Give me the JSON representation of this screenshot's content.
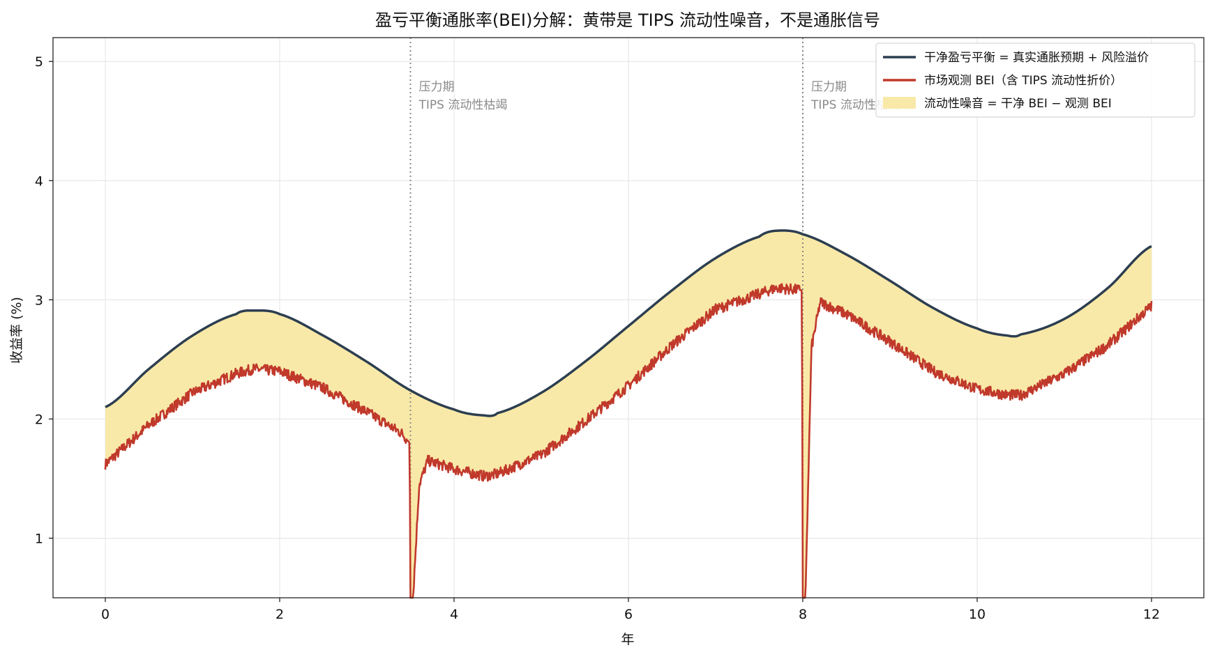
{
  "chart_data": {
    "type": "line",
    "title": "盈亏平衡通胀率(BEI)分解：黄带是 TIPS 流动性噪音，不是通胀信号",
    "xlabel": "年",
    "ylabel": "收益率 (%)",
    "xlim": [
      -0.6,
      12.6
    ],
    "ylim": [
      0.5,
      5.2
    ],
    "xticks": [
      0,
      2,
      4,
      6,
      8,
      10,
      12
    ],
    "yticks": [
      1,
      2,
      3,
      4,
      5
    ],
    "grid": true,
    "legend_position": "top-right",
    "stress_events": [
      3.5,
      8.0
    ],
    "annotations": [
      {
        "x": 3.5,
        "lines": [
          "压力期",
          "TIPS 流动性枯竭"
        ]
      },
      {
        "x": 8.0,
        "lines": [
          "压力期",
          "TIPS 流动性枯竭"
        ]
      }
    ],
    "series": [
      {
        "name": "干净盈亏平衡 = 真实通胀预期 + 风险溢价",
        "color": "#2c3e50",
        "x": [
          0,
          0.5,
          1,
          1.5,
          1.7,
          2,
          2.5,
          3,
          3.5,
          4,
          4.35,
          4.5,
          5,
          5.5,
          6,
          6.5,
          7,
          7.5,
          7.7,
          8,
          8.5,
          9,
          9.5,
          10,
          10.35,
          10.5,
          11,
          11.5,
          12
        ],
        "values": [
          2.1,
          2.42,
          2.7,
          2.88,
          2.91,
          2.88,
          2.7,
          2.48,
          2.24,
          2.08,
          2.03,
          2.05,
          2.22,
          2.48,
          2.78,
          3.08,
          3.35,
          3.53,
          3.58,
          3.55,
          3.38,
          3.16,
          2.93,
          2.76,
          2.7,
          2.71,
          2.84,
          3.1,
          3.45
        ]
      },
      {
        "name": "市场观测 BEI（含 TIPS 流动性折价）",
        "color": "#c0392b",
        "x": [
          0,
          0.5,
          1,
          1.5,
          1.7,
          2,
          2.5,
          3,
          3.4,
          3.49,
          3.5,
          3.53,
          3.6,
          3.7,
          4,
          4.35,
          4.5,
          5,
          5.5,
          6,
          6.5,
          7,
          7.5,
          7.7,
          7.99,
          8.0,
          8.03,
          8.1,
          8.2,
          8.5,
          9,
          9.5,
          10,
          10.35,
          10.5,
          11,
          11.5,
          12
        ],
        "values": [
          1.62,
          1.95,
          2.22,
          2.38,
          2.42,
          2.4,
          2.26,
          2.06,
          1.88,
          1.8,
          0.5,
          0.5,
          1.45,
          1.65,
          1.58,
          1.52,
          1.54,
          1.7,
          1.98,
          2.28,
          2.62,
          2.92,
          3.05,
          3.1,
          3.08,
          0.5,
          0.5,
          2.6,
          2.98,
          2.88,
          2.65,
          2.4,
          2.25,
          2.2,
          2.2,
          2.38,
          2.62,
          2.95
        ]
      }
    ],
    "fill_band": {
      "name": "流动性噪音 = 干净 BEI − 观测 BEI",
      "color": "#f9e9a8"
    }
  }
}
